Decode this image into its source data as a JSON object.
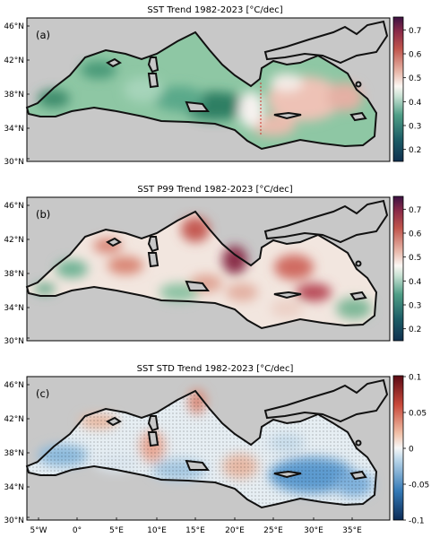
{
  "lon_ticks": [
    "5°W",
    "0°",
    "5°E",
    "10°E",
    "15°E",
    "20°E",
    "25°E",
    "30°E",
    "35°E"
  ],
  "lat_ticks": [
    "46°N",
    "42°N",
    "38°N",
    "34°N",
    "30°N"
  ],
  "panels": [
    {
      "title": "SST Trend 1982-2023 [°C/dec]",
      "tag": "(a)",
      "colorbar_ticks": [
        "0.7",
        "0.6",
        "0.5",
        "0.4",
        "0.3",
        "0.2"
      ],
      "colorbar_range": [
        0.15,
        0.75
      ],
      "colormap": "green-white-red",
      "note": "dashed red meridian near 22.5°E"
    },
    {
      "title": "SST P99 Trend 1982-2023 [°C/dec]",
      "tag": "(b)",
      "colorbar_ticks": [
        "0.7",
        "0.6",
        "0.5",
        "0.4",
        "0.3",
        "0.2"
      ],
      "colorbar_range": [
        0.15,
        0.75
      ],
      "colormap": "green-white-red"
    },
    {
      "title": "SST STD Trend 1982-2023 [°C/dec]",
      "tag": "(c)",
      "colorbar_ticks": [
        "0.1",
        "0.05",
        "0",
        "-0.05",
        "-0.1"
      ],
      "colorbar_range": [
        -0.1,
        0.1
      ],
      "colormap": "blue-white-red",
      "note": "stippling marks significant trends"
    }
  ],
  "colors": {
    "land": "#c8c8c8",
    "coast": "#111111",
    "green_dark": "#1f6e5a",
    "green_light": "#8fc4a6",
    "red_light": "#e2a296",
    "red_dark": "#7b1a3b",
    "blue": "#4f8fc2"
  }
}
